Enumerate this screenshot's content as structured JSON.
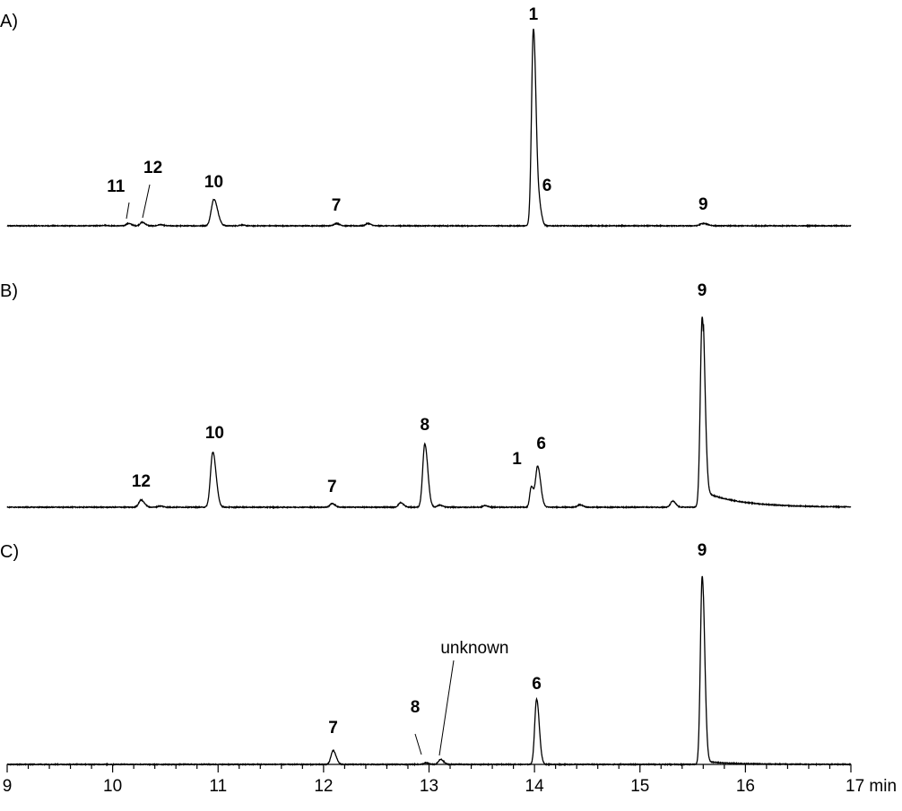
{
  "chart_data": {
    "type": "line",
    "description_units": "x in min, y in relative intensity (fraction of largest peak)",
    "xlim": [
      9,
      17
    ],
    "x_unit": "min",
    "x_ticks": [
      9,
      10,
      11,
      12,
      13,
      14,
      15,
      16,
      17
    ],
    "x_tick_labels": [
      "9",
      "10",
      "11",
      "12",
      "13",
      "14",
      "15",
      "16",
      "17 min"
    ],
    "grid": false,
    "panels": [
      {
        "label": "A)",
        "peaks": [
          {
            "rt": 9.92,
            "h": 0.003,
            "w": 0.02
          },
          {
            "rt": 10.15,
            "h": 0.012,
            "w": 0.02,
            "label": "11",
            "leader": true
          },
          {
            "rt": 10.28,
            "h": 0.018,
            "w": 0.02,
            "label": "12",
            "leader": true
          },
          {
            "rt": 10.45,
            "h": 0.006,
            "w": 0.02
          },
          {
            "rt": 10.96,
            "h": 0.135,
            "w": 0.025,
            "label": "10"
          },
          {
            "rt": 11.22,
            "h": 0.004,
            "w": 0.02
          },
          {
            "rt": 12.12,
            "h": 0.012,
            "w": 0.022,
            "label": "7"
          },
          {
            "rt": 12.42,
            "h": 0.012,
            "w": 0.02
          },
          {
            "rt": 13.99,
            "h": 1.0,
            "w": 0.018,
            "label": "1"
          },
          {
            "rt": 14.05,
            "h": 0.075,
            "w": 0.015,
            "label": "6"
          },
          {
            "rt": 15.6,
            "h": 0.012,
            "w": 0.03,
            "label": "9"
          }
        ],
        "tail": null
      },
      {
        "label": "B)",
        "peaks": [
          {
            "rt": 10.27,
            "h": 0.035,
            "w": 0.022,
            "label": "12"
          },
          {
            "rt": 10.45,
            "h": 0.006,
            "w": 0.02
          },
          {
            "rt": 10.95,
            "h": 0.27,
            "w": 0.022,
            "label": "10"
          },
          {
            "rt": 12.08,
            "h": 0.018,
            "w": 0.02,
            "label": "7"
          },
          {
            "rt": 12.73,
            "h": 0.022,
            "w": 0.02
          },
          {
            "rt": 12.96,
            "h": 0.31,
            "w": 0.02,
            "label": "8"
          },
          {
            "rt": 13.1,
            "h": 0.01,
            "w": 0.02
          },
          {
            "rt": 13.53,
            "h": 0.008,
            "w": 0.02
          },
          {
            "rt": 13.97,
            "h": 0.1,
            "w": 0.015,
            "label": "1"
          },
          {
            "rt": 14.03,
            "h": 0.2,
            "w": 0.02,
            "label": "6"
          },
          {
            "rt": 14.43,
            "h": 0.012,
            "w": 0.02
          },
          {
            "rt": 15.31,
            "h": 0.03,
            "w": 0.02
          },
          {
            "rt": 15.59,
            "h": 0.93,
            "w": 0.018,
            "label": "9"
          }
        ],
        "tail": {
          "start": 15.6,
          "h": 0.075,
          "decay": 0.35
        }
      },
      {
        "label": "C)",
        "peaks": [
          {
            "rt": 12.09,
            "h": 0.07,
            "w": 0.02,
            "label": "7"
          },
          {
            "rt": 12.97,
            "h": 0.008,
            "w": 0.02,
            "label": "8",
            "leader": true
          },
          {
            "rt": 13.11,
            "h": 0.025,
            "w": 0.02,
            "label": "unknown",
            "leader": true
          },
          {
            "rt": 14.02,
            "h": 0.33,
            "w": 0.018,
            "label": "6"
          },
          {
            "rt": 15.59,
            "h": 0.95,
            "w": 0.017,
            "label": "9"
          }
        ],
        "tail": {
          "start": 15.6,
          "h": 0.015,
          "decay": 0.3
        }
      }
    ]
  }
}
